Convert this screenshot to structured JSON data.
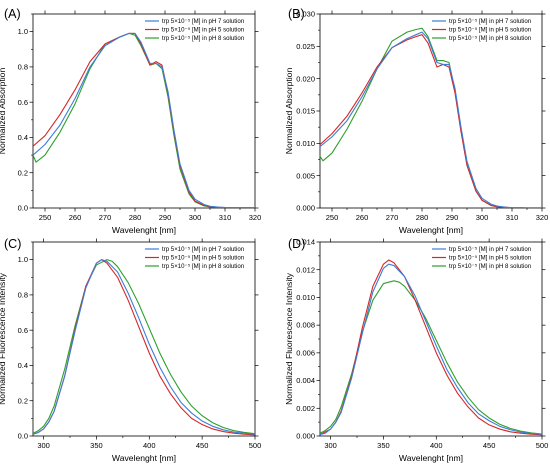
{
  "chart_data": [
    {
      "type": "line",
      "panel_label": "(A)",
      "xlabel": "Wavelenght [nm]",
      "ylabel": "Normalized Absorption",
      "xlim": [
        246,
        320
      ],
      "ylim": [
        0.0,
        1.1
      ],
      "xticks": [
        250,
        260,
        270,
        280,
        290,
        300,
        310,
        320
      ],
      "yticks": [
        0.0,
        0.2,
        0.4,
        0.6,
        0.8,
        1.0
      ],
      "ytick_decimals": 1,
      "legend_position": "top-right",
      "series": [
        {
          "name": "trp 5×10⁻⁵ [M] in pH 7 solution",
          "color": "#3b7dd8",
          "x": [
            246,
            250,
            255,
            260,
            265,
            270,
            275,
            278,
            280,
            282,
            285,
            287,
            289,
            291,
            293,
            295,
            298,
            300,
            303,
            305,
            308,
            310,
            313,
            315,
            318,
            320
          ],
          "y": [
            0.3,
            0.36,
            0.47,
            0.62,
            0.8,
            0.92,
            0.97,
            0.99,
            0.99,
            0.94,
            0.82,
            0.82,
            0.8,
            0.66,
            0.44,
            0.25,
            0.1,
            0.05,
            0.02,
            0.01,
            0.005,
            0.003,
            0.002,
            0.002,
            0.002,
            0.002
          ]
        },
        {
          "name": "trp 5×10⁻⁵ [M] in pH 5 solution",
          "color": "#d62728",
          "x": [
            246,
            250,
            255,
            260,
            265,
            270,
            275,
            278,
            280,
            282,
            285,
            287,
            289,
            291,
            293,
            295,
            298,
            300,
            303,
            305,
            308,
            310,
            313,
            315,
            318,
            320
          ],
          "y": [
            0.35,
            0.41,
            0.53,
            0.67,
            0.83,
            0.93,
            0.97,
            0.99,
            0.99,
            0.93,
            0.81,
            0.83,
            0.81,
            0.65,
            0.43,
            0.24,
            0.09,
            0.04,
            0.015,
            0.008,
            0.004,
            0.002,
            0.001,
            0.001,
            0.001,
            0.001
          ]
        },
        {
          "name": "trp 5×10⁻⁵ [M] in pH 8 solution",
          "color": "#2ca02c",
          "x": [
            246,
            247,
            250,
            255,
            260,
            265,
            270,
            275,
            278,
            280,
            282,
            285,
            287,
            289,
            291,
            293,
            295,
            298,
            300,
            303,
            305,
            308,
            310,
            313,
            315,
            318,
            320
          ],
          "y": [
            0.3,
            0.26,
            0.3,
            0.43,
            0.59,
            0.79,
            0.93,
            0.97,
            0.99,
            0.98,
            0.92,
            0.81,
            0.82,
            0.79,
            0.63,
            0.41,
            0.22,
            0.08,
            0.035,
            0.012,
            0.006,
            0.003,
            0.002,
            0.001,
            0.001,
            0.001,
            0.001
          ]
        }
      ]
    },
    {
      "type": "line",
      "panel_label": "(B)",
      "xlabel": "Wavelenght [nm]",
      "ylabel": "Normalized Absorption",
      "xlim": [
        246,
        320
      ],
      "ylim": [
        0.0,
        0.03
      ],
      "xticks": [
        250,
        260,
        270,
        280,
        290,
        300,
        310,
        320
      ],
      "yticks": [
        0.0,
        0.005,
        0.01,
        0.015,
        0.02,
        0.025,
        0.03
      ],
      "ytick_decimals": 3,
      "legend_position": "top-right",
      "series": [
        {
          "name": "trp 5×10⁻⁵ [M] in pH 7 solution",
          "color": "#3b7dd8",
          "x": [
            246,
            250,
            255,
            260,
            265,
            270,
            275,
            278,
            280,
            282,
            285,
            287,
            289,
            291,
            293,
            295,
            298,
            300,
            303,
            305,
            308,
            310,
            313,
            315,
            318,
            320
          ],
          "y": [
            0.0095,
            0.011,
            0.0135,
            0.0172,
            0.0215,
            0.0248,
            0.0262,
            0.0268,
            0.0272,
            0.0262,
            0.0225,
            0.0222,
            0.0222,
            0.0185,
            0.0125,
            0.0072,
            0.003,
            0.0015,
            0.0006,
            0.0003,
            0.0001,
            5e-05,
            3e-05,
            2e-05,
            2e-05,
            2e-05
          ]
        },
        {
          "name": "trp 5×10⁻⁵ [M] in pH 5 solution",
          "color": "#d62728",
          "x": [
            246,
            250,
            255,
            260,
            265,
            270,
            275,
            278,
            280,
            282,
            285,
            287,
            289,
            291,
            293,
            295,
            298,
            300,
            303,
            305,
            308,
            310,
            313,
            315,
            318,
            320
          ],
          "y": [
            0.0098,
            0.0115,
            0.0142,
            0.0178,
            0.0218,
            0.0248,
            0.026,
            0.0265,
            0.0268,
            0.0255,
            0.0218,
            0.0222,
            0.0218,
            0.0178,
            0.0118,
            0.0066,
            0.0026,
            0.0012,
            0.0004,
            0.0002,
            0.0001,
            5e-05,
            3e-05,
            2e-05,
            2e-05,
            2e-05
          ]
        },
        {
          "name": "trp 5×10⁻⁵ [M] in pH 8 solution",
          "color": "#2ca02c",
          "x": [
            246,
            247,
            250,
            255,
            260,
            265,
            270,
            275,
            278,
            280,
            282,
            285,
            287,
            289,
            291,
            293,
            295,
            298,
            300,
            303,
            305,
            308,
            310,
            313,
            315,
            318,
            320
          ],
          "y": [
            0.008,
            0.0073,
            0.0085,
            0.0122,
            0.0165,
            0.0215,
            0.0258,
            0.0272,
            0.0276,
            0.0278,
            0.0265,
            0.0228,
            0.0228,
            0.0225,
            0.0182,
            0.012,
            0.0066,
            0.0026,
            0.0012,
            0.0004,
            0.0002,
            0.0001,
            5e-05,
            3e-05,
            2e-05,
            2e-05,
            2e-05
          ]
        }
      ]
    },
    {
      "type": "line",
      "panel_label": "(C)",
      "xlabel": "Wavelenght [nm]",
      "ylabel": "Normalized Fluorescence Intensity",
      "xlim": [
        290,
        500
      ],
      "ylim": [
        0.0,
        1.1
      ],
      "xticks": [
        300,
        350,
        400,
        450,
        500
      ],
      "yticks": [
        0.0,
        0.2,
        0.4,
        0.6,
        0.8,
        1.0
      ],
      "ytick_decimals": 1,
      "legend_position": "top-right",
      "series": [
        {
          "name": "trp 5×10⁻⁵ [M] in pH 7 solution",
          "color": "#3b7dd8",
          "x": [
            290,
            295,
            300,
            305,
            310,
            320,
            330,
            340,
            350,
            355,
            360,
            370,
            380,
            390,
            400,
            410,
            420,
            430,
            440,
            450,
            460,
            470,
            480,
            490,
            500
          ],
          "y": [
            0.01,
            0.02,
            0.04,
            0.08,
            0.14,
            0.34,
            0.6,
            0.84,
            0.98,
            1.0,
            0.99,
            0.93,
            0.81,
            0.67,
            0.52,
            0.39,
            0.28,
            0.19,
            0.13,
            0.085,
            0.055,
            0.035,
            0.022,
            0.015,
            0.01
          ]
        },
        {
          "name": "trp 5×10⁻⁵ [M] in pH 5 solution",
          "color": "#d62728",
          "x": [
            290,
            295,
            300,
            305,
            310,
            320,
            330,
            340,
            350,
            355,
            360,
            370,
            380,
            390,
            400,
            410,
            420,
            430,
            440,
            450,
            460,
            470,
            480,
            490,
            500
          ],
          "y": [
            0.01,
            0.02,
            0.04,
            0.08,
            0.14,
            0.34,
            0.61,
            0.85,
            0.98,
            1.0,
            0.98,
            0.9,
            0.77,
            0.62,
            0.47,
            0.34,
            0.24,
            0.16,
            0.1,
            0.065,
            0.04,
            0.025,
            0.016,
            0.01,
            0.007
          ]
        },
        {
          "name": "trp 5×10⁻⁵ [M] in pH 8 solution",
          "color": "#2ca02c",
          "x": [
            290,
            295,
            300,
            305,
            310,
            320,
            330,
            340,
            350,
            360,
            365,
            370,
            380,
            390,
            400,
            410,
            420,
            430,
            440,
            450,
            460,
            470,
            480,
            490,
            500
          ],
          "y": [
            0.015,
            0.03,
            0.055,
            0.1,
            0.17,
            0.38,
            0.63,
            0.85,
            0.97,
            1.0,
            0.99,
            0.96,
            0.87,
            0.75,
            0.61,
            0.47,
            0.35,
            0.25,
            0.17,
            0.115,
            0.075,
            0.048,
            0.03,
            0.02,
            0.013
          ]
        }
      ]
    },
    {
      "type": "line",
      "panel_label": "(D)",
      "xlabel": "Wavelenght [nm]",
      "ylabel": "Normalized Fluorescence Intensity",
      "xlim": [
        290,
        500
      ],
      "ylim": [
        0.0,
        0.014
      ],
      "xticks": [
        300,
        350,
        400,
        450,
        500
      ],
      "yticks": [
        0.0,
        0.002,
        0.004,
        0.006,
        0.008,
        0.01,
        0.012,
        0.014
      ],
      "ytick_decimals": 3,
      "legend_position": "top-right",
      "series": [
        {
          "name": "trp 5×10⁻⁵ [M] in pH 7 solution",
          "color": "#3b7dd8",
          "x": [
            290,
            295,
            300,
            305,
            310,
            320,
            330,
            340,
            350,
            355,
            360,
            370,
            380,
            390,
            400,
            410,
            420,
            430,
            440,
            450,
            460,
            470,
            480,
            490,
            500
          ],
          "y": [
            0.0001,
            0.0002,
            0.0005,
            0.001,
            0.0017,
            0.0042,
            0.0074,
            0.0104,
            0.0121,
            0.0124,
            0.0123,
            0.0115,
            0.0101,
            0.0083,
            0.0065,
            0.0048,
            0.0035,
            0.0024,
            0.0016,
            0.0011,
            0.0007,
            0.00045,
            0.00028,
            0.00018,
            0.00012
          ]
        },
        {
          "name": "trp 5×10⁻⁵ [M] in pH 5 solution",
          "color": "#d62728",
          "x": [
            290,
            295,
            300,
            305,
            310,
            320,
            330,
            340,
            350,
            355,
            360,
            370,
            380,
            390,
            400,
            410,
            420,
            430,
            440,
            450,
            460,
            470,
            480,
            490,
            500
          ],
          "y": [
            0.0001,
            0.0003,
            0.0005,
            0.001,
            0.0018,
            0.0043,
            0.0078,
            0.0108,
            0.0124,
            0.0127,
            0.0125,
            0.0115,
            0.0098,
            0.0079,
            0.006,
            0.0044,
            0.0031,
            0.0021,
            0.0013,
            0.0008,
            0.0005,
            0.0003,
            0.0002,
            0.00013,
            9e-05
          ]
        },
        {
          "name": "trp 5×10⁻⁵ [M] in pH 8 solution",
          "color": "#2ca02c",
          "x": [
            290,
            295,
            300,
            305,
            310,
            320,
            330,
            340,
            350,
            360,
            365,
            370,
            380,
            390,
            400,
            410,
            420,
            430,
            440,
            450,
            460,
            470,
            480,
            490,
            500
          ],
          "y": [
            0.0002,
            0.0004,
            0.0007,
            0.0012,
            0.0021,
            0.0045,
            0.0075,
            0.0098,
            0.011,
            0.0112,
            0.0111,
            0.0108,
            0.0098,
            0.0085,
            0.0069,
            0.0053,
            0.0039,
            0.0028,
            0.0019,
            0.0013,
            0.00085,
            0.00055,
            0.00035,
            0.00022,
            0.00014
          ]
        }
      ]
    }
  ]
}
